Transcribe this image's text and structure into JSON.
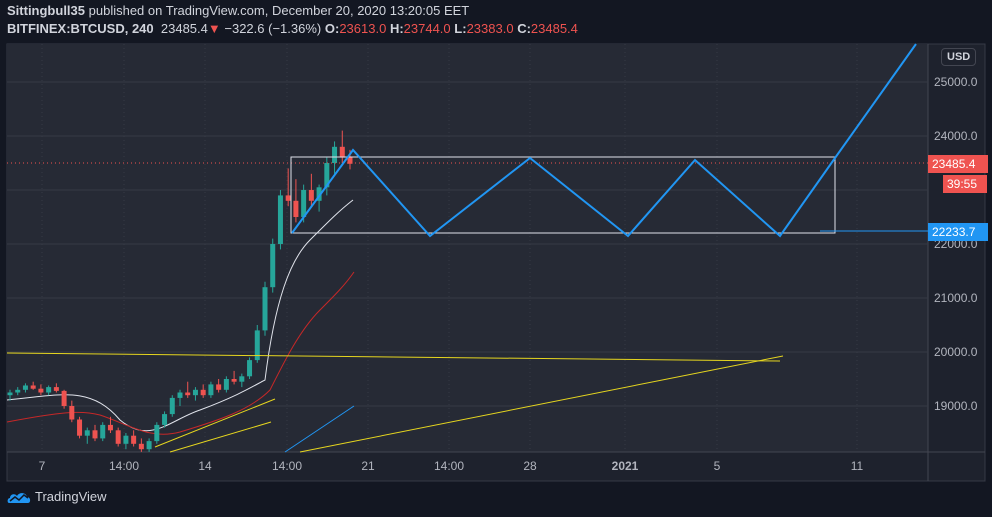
{
  "header": {
    "author": "Sittingbull35",
    "published": "published on TradingView.com, December 20, 2020 13:20:05 EET",
    "symbol": "BITFINEX:BTCUSD, 240",
    "last": "23485.4",
    "change": "−322.6 (−1.36%)",
    "o_label": "O:",
    "o": "23613.0",
    "h_label": "H:",
    "h": "23744.0",
    "l_label": "L:",
    "l": "23383.0",
    "c_label": "C:",
    "c": "23485.4"
  },
  "price_axis": {
    "currency": "USD",
    "ticks": [
      "25000.0",
      "24000.0",
      "22000.0",
      "21000.0",
      "20000.0",
      "19000.0"
    ],
    "last_price_tag": "23485.4",
    "countdown_tag": "39:55",
    "drawing_tag": "22233.7"
  },
  "time_axis": {
    "ticks": [
      "7",
      "14:00",
      "14",
      "14:00",
      "21",
      "14:00",
      "28",
      "2021",
      "5",
      "11"
    ]
  },
  "footer": {
    "brand": "TradingView"
  },
  "colors": {
    "up": "#26a69a",
    "down": "#ef5350",
    "drawing": "#2196f3",
    "trend": "#e6d61f"
  },
  "chart_data": {
    "type": "candlestick",
    "symbol": "BITFINEX:BTCUSD",
    "interval": "240",
    "ylim": [
      18150,
      25700
    ],
    "candles": [
      [
        19200,
        19300,
        19100,
        19250
      ],
      [
        19250,
        19350,
        19200,
        19300
      ],
      [
        19300,
        19420,
        19250,
        19380
      ],
      [
        19380,
        19450,
        19300,
        19320
      ],
      [
        19320,
        19400,
        19200,
        19250
      ],
      [
        19250,
        19380,
        19200,
        19350
      ],
      [
        19350,
        19420,
        19250,
        19280
      ],
      [
        19280,
        19300,
        18950,
        19000
      ],
      [
        19000,
        19100,
        18700,
        18750
      ],
      [
        18750,
        18800,
        18400,
        18450
      ],
      [
        18450,
        18600,
        18300,
        18550
      ],
      [
        18550,
        18650,
        18350,
        18400
      ],
      [
        18400,
        18700,
        18350,
        18650
      ],
      [
        18650,
        18800,
        18500,
        18550
      ],
      [
        18550,
        18600,
        18250,
        18300
      ],
      [
        18300,
        18500,
        18200,
        18450
      ],
      [
        18450,
        18550,
        18250,
        18300
      ],
      [
        18300,
        18400,
        18150,
        18200
      ],
      [
        18200,
        18400,
        18150,
        18350
      ],
      [
        18350,
        18700,
        18300,
        18650
      ],
      [
        18650,
        18900,
        18600,
        18850
      ],
      [
        18850,
        19200,
        18800,
        19150
      ],
      [
        19150,
        19300,
        19000,
        19250
      ],
      [
        19250,
        19450,
        19150,
        19200
      ],
      [
        19200,
        19350,
        19100,
        19300
      ],
      [
        19300,
        19400,
        19150,
        19200
      ],
      [
        19200,
        19450,
        19150,
        19400
      ],
      [
        19400,
        19500,
        19250,
        19300
      ],
      [
        19300,
        19550,
        19250,
        19500
      ],
      [
        19500,
        19650,
        19400,
        19450
      ],
      [
        19450,
        19600,
        19350,
        19550
      ],
      [
        19550,
        19900,
        19500,
        19850
      ],
      [
        19850,
        20500,
        19800,
        20400
      ],
      [
        20400,
        21300,
        20300,
        21200
      ],
      [
        21200,
        22100,
        21100,
        22000
      ],
      [
        22000,
        23000,
        21900,
        22900
      ],
      [
        22900,
        23400,
        22700,
        22800
      ],
      [
        22800,
        23200,
        22400,
        22500
      ],
      [
        22500,
        23100,
        22400,
        23000
      ],
      [
        23000,
        23300,
        22700,
        22800
      ],
      [
        22800,
        23100,
        22600,
        23050
      ],
      [
        23050,
        23600,
        22900,
        23500
      ],
      [
        23500,
        23900,
        23300,
        23800
      ],
      [
        23800,
        24100,
        23500,
        23600
      ],
      [
        23613,
        23744,
        23383,
        23485.4
      ]
    ]
  }
}
